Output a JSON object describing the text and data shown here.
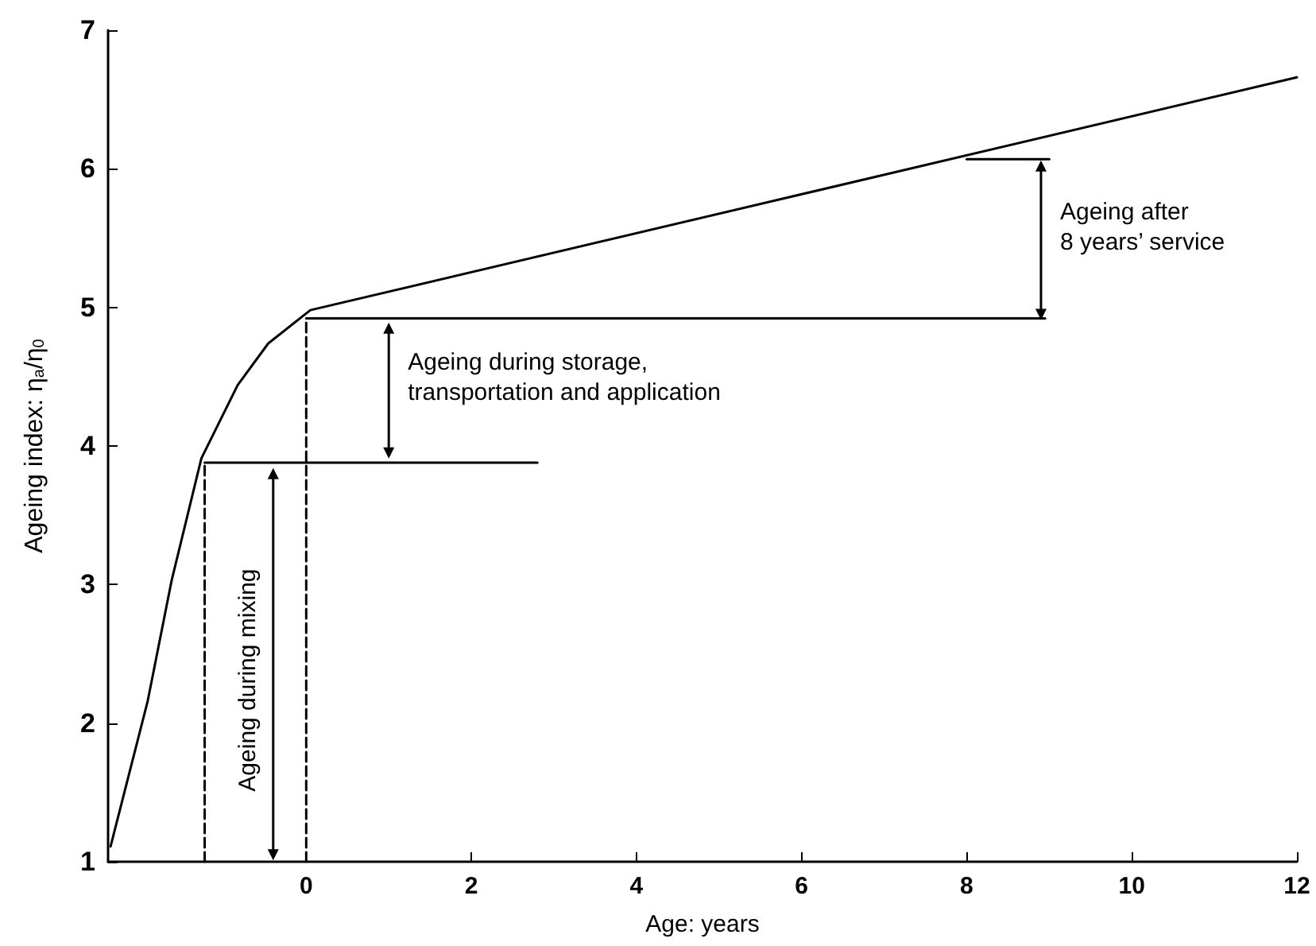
{
  "chart_data": {
    "type": "line",
    "xlabel": "Age: years",
    "ylabel": "Ageing index: η$_{a}$/η$_{0}$",
    "xlim": [
      -2.4,
      12
    ],
    "xticks": [
      0,
      2,
      4,
      6,
      8,
      10,
      12
    ],
    "ylim": [
      1,
      7
    ],
    "yticks": [
      1,
      2,
      3,
      4,
      5,
      6,
      7
    ],
    "grid": false,
    "marker": "none",
    "line_style": "solid",
    "series": [
      {
        "color": "#000000",
        "x": [
          -2.37,
          -1.92,
          -1.63,
          -1.27,
          -0.83,
          -0.46,
          0.05,
          12
        ],
        "values": [
          1.11,
          2.16,
          3.03,
          3.91,
          4.44,
          4.74,
          4.98,
          6.66
        ]
      },
      {
        "color": "#000000",
        "x": [
          -1.23,
          -1.23
        ],
        "values": [
          1,
          3.88
        ],
        "line_style": "dashed"
      },
      {
        "color": "#000000",
        "x": [
          0,
          0
        ],
        "values": [
          1,
          4.92
        ],
        "line_style": "dashed"
      },
      {
        "color": "#000000",
        "x": [
          -1.23,
          2.8
        ],
        "values": [
          3.88,
          3.88
        ]
      },
      {
        "color": "#000000",
        "x": [
          0,
          8.95
        ],
        "values": [
          4.92,
          4.92
        ]
      },
      {
        "color": "#000000",
        "x": [
          8,
          9
        ],
        "values": [
          6.07,
          6.07
        ]
      },
      {
        "color": "#000000",
        "x": [
          -0.4,
          -0.4
        ],
        "values": [
          3.8,
          1.05
        ],
        "marker": "triangle"
      },
      {
        "color": "#000000",
        "x": [
          1,
          1
        ],
        "values": [
          4.85,
          3.95
        ],
        "marker": "triangle"
      },
      {
        "color": "#000000",
        "x": [
          8.9,
          8.9
        ],
        "values": [
          6.02,
          4.95
        ],
        "marker": "triangle"
      }
    ],
    "annotations": [
      "Ageing during mixing",
      "Ageing during storage,\ntransportation and application",
      "Ageing after\n8 years’ service"
    ]
  }
}
